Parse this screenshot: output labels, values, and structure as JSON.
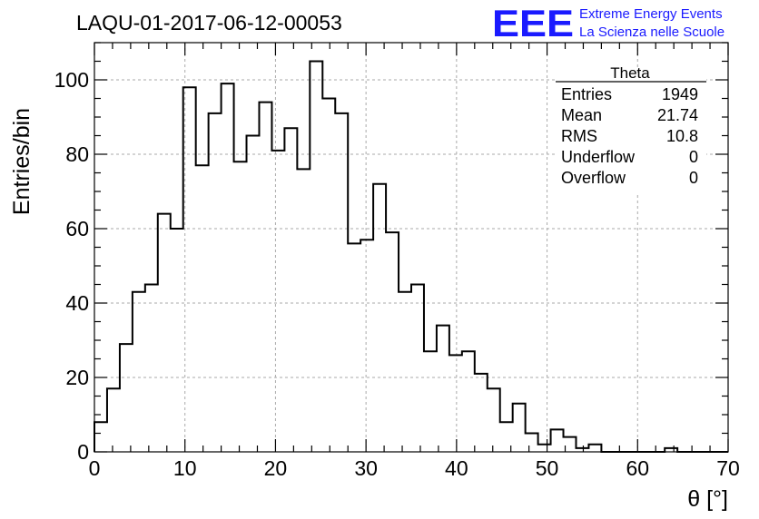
{
  "header": {
    "run_title": "LAQU-01-2017-06-12-00053",
    "logo_text": "EEE",
    "logo_line1": "Extreme Energy Events",
    "logo_line2": "La Scienza nelle Scuole"
  },
  "stats": {
    "title": "Theta",
    "rows": [
      {
        "label": "Entries",
        "value": "1949"
      },
      {
        "label": "Mean",
        "value": "21.74"
      },
      {
        "label": "RMS",
        "value": "10.8"
      },
      {
        "label": "Underflow",
        "value": "0"
      },
      {
        "label": "Overflow",
        "value": "0"
      }
    ]
  },
  "chart_data": {
    "type": "histogram",
    "title": "LAQU-01-2017-06-12-00053",
    "xlabel": "θ [°]",
    "ylabel": "Entries/bin",
    "xlim": [
      0,
      70
    ],
    "ylim": [
      0,
      110
    ],
    "grid": true,
    "bin_width": 1.4,
    "bin_start": 0,
    "values": [
      8,
      17,
      29,
      43,
      45,
      64,
      60,
      98,
      77,
      91,
      99,
      78,
      85,
      94,
      81,
      87,
      76,
      105,
      95,
      91,
      56,
      57,
      72,
      59,
      43,
      45,
      27,
      34,
      26,
      27,
      21,
      17,
      8,
      13,
      5,
      2,
      6,
      4,
      1,
      2,
      0,
      0,
      0,
      0,
      0,
      1,
      0,
      0,
      0,
      0
    ],
    "x_ticks": [
      "0",
      "10",
      "20",
      "30",
      "40",
      "50",
      "60",
      "70"
    ],
    "y_ticks": [
      "0",
      "20",
      "40",
      "60",
      "80",
      "100"
    ]
  }
}
